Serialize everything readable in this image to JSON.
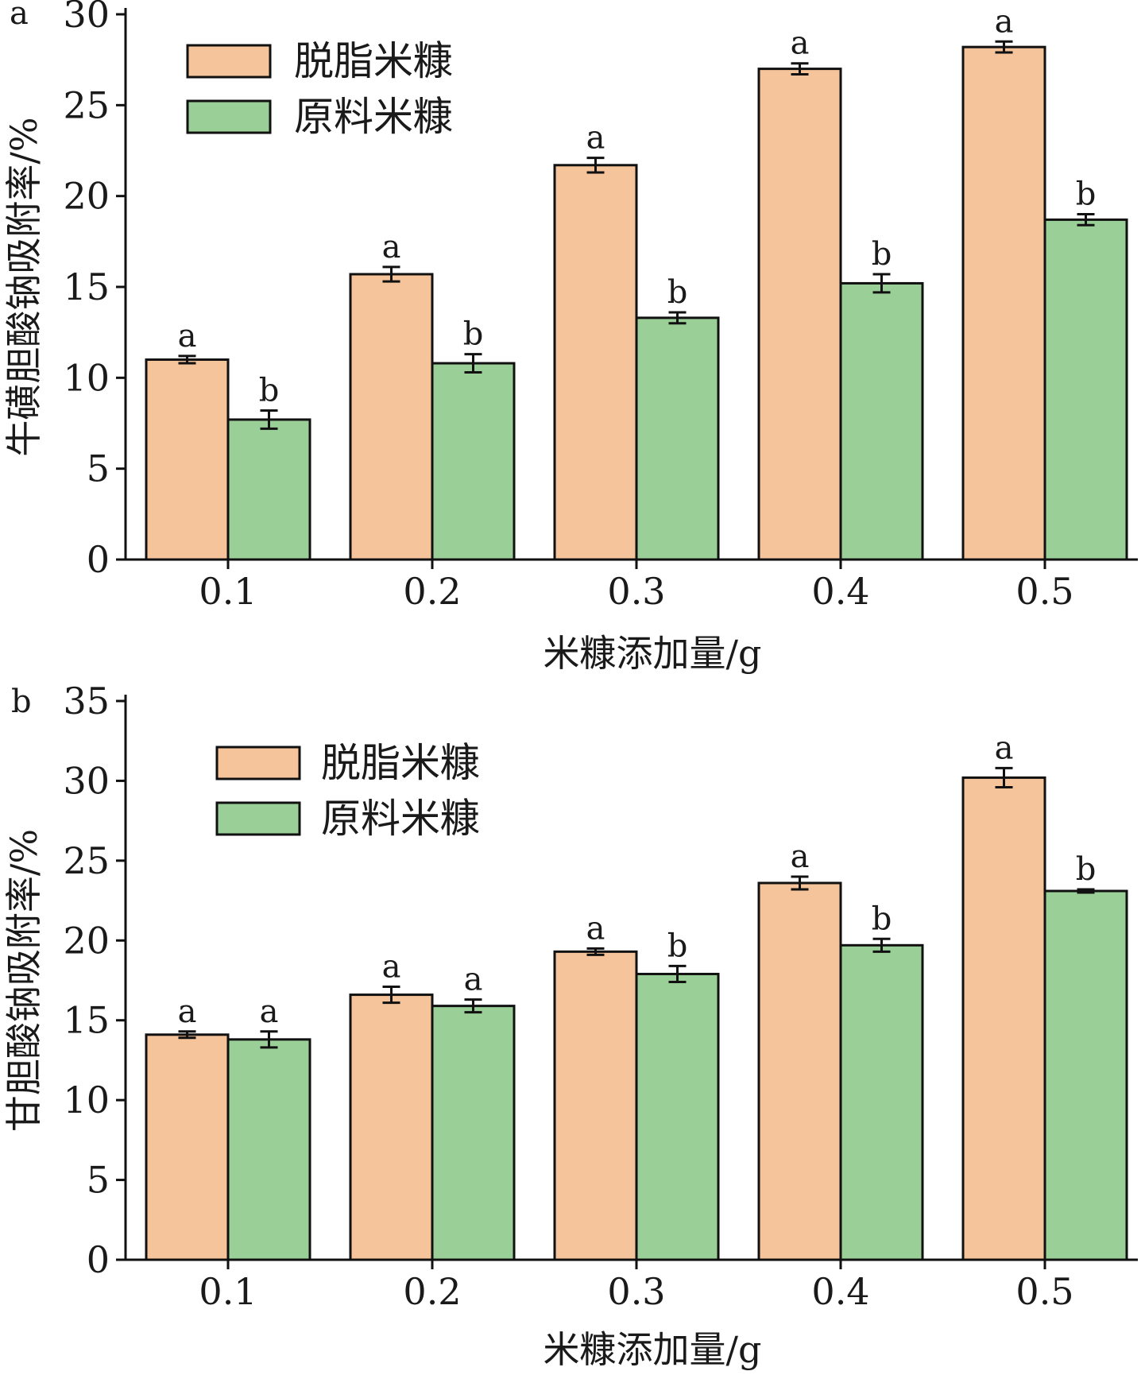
{
  "chart_data": [
    {
      "panel_label": "a",
      "type": "bar",
      "title": "",
      "xlabel": "米糠添加量/g",
      "ylabel": "牛磺胆酸钠吸附率/%",
      "categories": [
        "0.1",
        "0.2",
        "0.3",
        "0.4",
        "0.5"
      ],
      "ylim": [
        0,
        30
      ],
      "yticks": [
        "0",
        "5",
        "10",
        "15",
        "20",
        "25",
        "30"
      ],
      "legend_position": "top-left",
      "series": [
        {
          "name": "脱脂米糠",
          "color": "#F5C49A",
          "values": [
            11.0,
            15.7,
            21.7,
            27.0,
            28.2
          ],
          "errors": [
            0.2,
            0.4,
            0.4,
            0.3,
            0.3
          ],
          "labels": [
            "a",
            "a",
            "a",
            "a",
            "a"
          ]
        },
        {
          "name": "原料米糠",
          "color": "#9ACF97",
          "values": [
            7.7,
            10.8,
            13.3,
            15.2,
            18.7
          ],
          "errors": [
            0.5,
            0.5,
            0.3,
            0.5,
            0.3
          ],
          "labels": [
            "b",
            "b",
            "b",
            "b",
            "b"
          ]
        }
      ]
    },
    {
      "panel_label": "b",
      "type": "bar",
      "title": "",
      "xlabel": "米糠添加量/g",
      "ylabel": "甘胆酸钠吸附率/%",
      "categories": [
        "0.1",
        "0.2",
        "0.3",
        "0.4",
        "0.5"
      ],
      "ylim": [
        0,
        35
      ],
      "yticks": [
        "0",
        "5",
        "10",
        "15",
        "20",
        "25",
        "30",
        "35"
      ],
      "legend_position": "top-left",
      "series": [
        {
          "name": "脱脂米糠",
          "color": "#F5C49A",
          "values": [
            14.1,
            16.6,
            19.3,
            23.6,
            30.2
          ],
          "errors": [
            0.2,
            0.5,
            0.2,
            0.4,
            0.6
          ],
          "labels": [
            "a",
            "a",
            "a",
            "a",
            "a"
          ]
        },
        {
          "name": "原料米糠",
          "color": "#9ACF97",
          "values": [
            13.8,
            15.9,
            17.9,
            19.7,
            23.1
          ],
          "errors": [
            0.5,
            0.4,
            0.5,
            0.4,
            0.1
          ],
          "labels": [
            "a",
            "a",
            "b",
            "b",
            "b"
          ]
        }
      ]
    }
  ]
}
